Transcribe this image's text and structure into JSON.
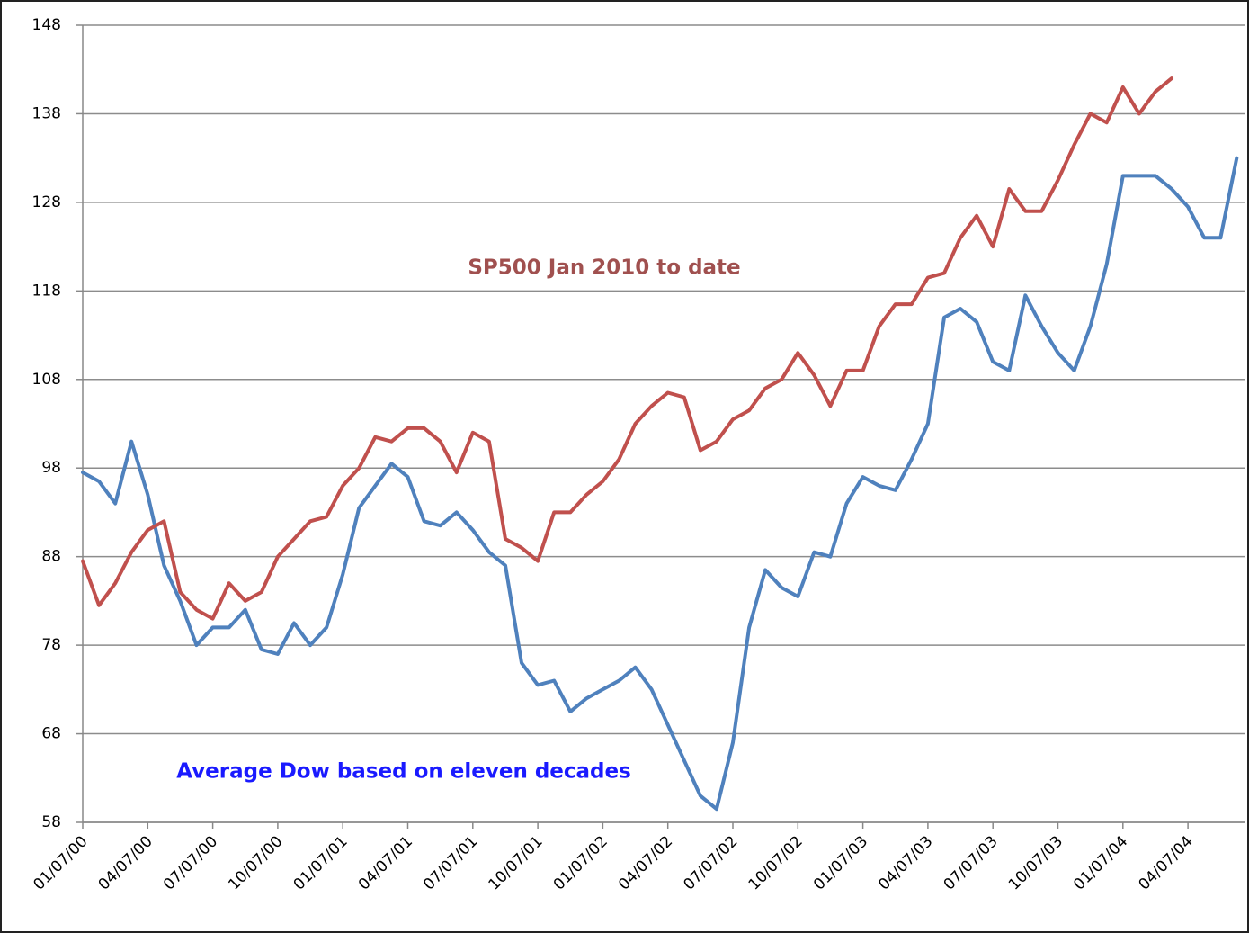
{
  "chart_data": {
    "type": "line",
    "annotations": [
      "SP500 Jan 2010 to date",
      "Average Dow based on eleven decades"
    ],
    "categories": [
      "01/07/00",
      null,
      null,
      null,
      "04/07/00",
      null,
      null,
      null,
      "07/07/00",
      null,
      null,
      null,
      "10/07/00",
      null,
      null,
      null,
      "01/07/01",
      null,
      null,
      null,
      "04/07/01",
      null,
      null,
      null,
      "07/07/01",
      null,
      null,
      null,
      "10/07/01",
      null,
      null,
      null,
      "01/07/02",
      null,
      null,
      null,
      "04/07/02",
      null,
      null,
      null,
      "07/07/02",
      null,
      null,
      null,
      "10/07/02",
      null,
      null,
      null,
      "01/07/03",
      null,
      null,
      null,
      "04/07/03",
      null,
      null,
      null,
      "07/07/03",
      null,
      null,
      null,
      "10/07/03",
      null,
      null,
      null,
      "01/07/04",
      null,
      null,
      null,
      "04/07/04",
      null,
      null,
      null
    ],
    "series": [
      {
        "name": "Average Dow based on eleven decades",
        "color": "#4f81bd",
        "values": [
          97.5,
          96.5,
          94,
          101,
          95,
          87,
          83,
          78,
          80,
          80,
          82,
          77.5,
          77,
          80.5,
          78,
          80,
          86,
          93.5,
          96,
          98.5,
          97,
          92,
          91.5,
          93,
          91,
          88.5,
          87,
          76,
          73.5,
          74,
          70.5,
          72,
          73,
          74,
          75.5,
          73,
          69,
          65,
          61,
          59.5,
          67,
          80,
          86.5,
          84.5,
          83.5,
          88.5,
          88,
          94,
          97,
          96,
          95.5,
          99,
          103,
          115,
          116,
          114.5,
          110,
          109,
          117.5,
          114,
          111,
          109,
          114,
          121,
          131,
          131,
          131,
          129.5,
          127.5,
          124,
          124,
          133
        ]
      },
      {
        "name": "SP500 Jan 2010 to date",
        "color": "#c0504d",
        "values": [
          87.5,
          82.5,
          85,
          88.5,
          91,
          92,
          84,
          82,
          81,
          85,
          83,
          84,
          88,
          90,
          92,
          92.5,
          96,
          98,
          101.5,
          101,
          102.5,
          102.5,
          101,
          97.5,
          102,
          101,
          90,
          89,
          87.5,
          93,
          93,
          95,
          96.5,
          99,
          103,
          105,
          106.5,
          106,
          100,
          101,
          103.5,
          104.5,
          107,
          108,
          111,
          108.5,
          105,
          109,
          109,
          114,
          116.5,
          116.5,
          119.5,
          120,
          124,
          126.5,
          123,
          129.5,
          127,
          127,
          130.5,
          134.5,
          138,
          137,
          141,
          138,
          140.5,
          142,
          null,
          null,
          null,
          null
        ]
      }
    ],
    "ylim": [
      58,
      148
    ],
    "yticks": [
      58,
      68,
      78,
      88,
      98,
      108,
      118,
      128,
      138,
      148
    ],
    "grid": true
  }
}
